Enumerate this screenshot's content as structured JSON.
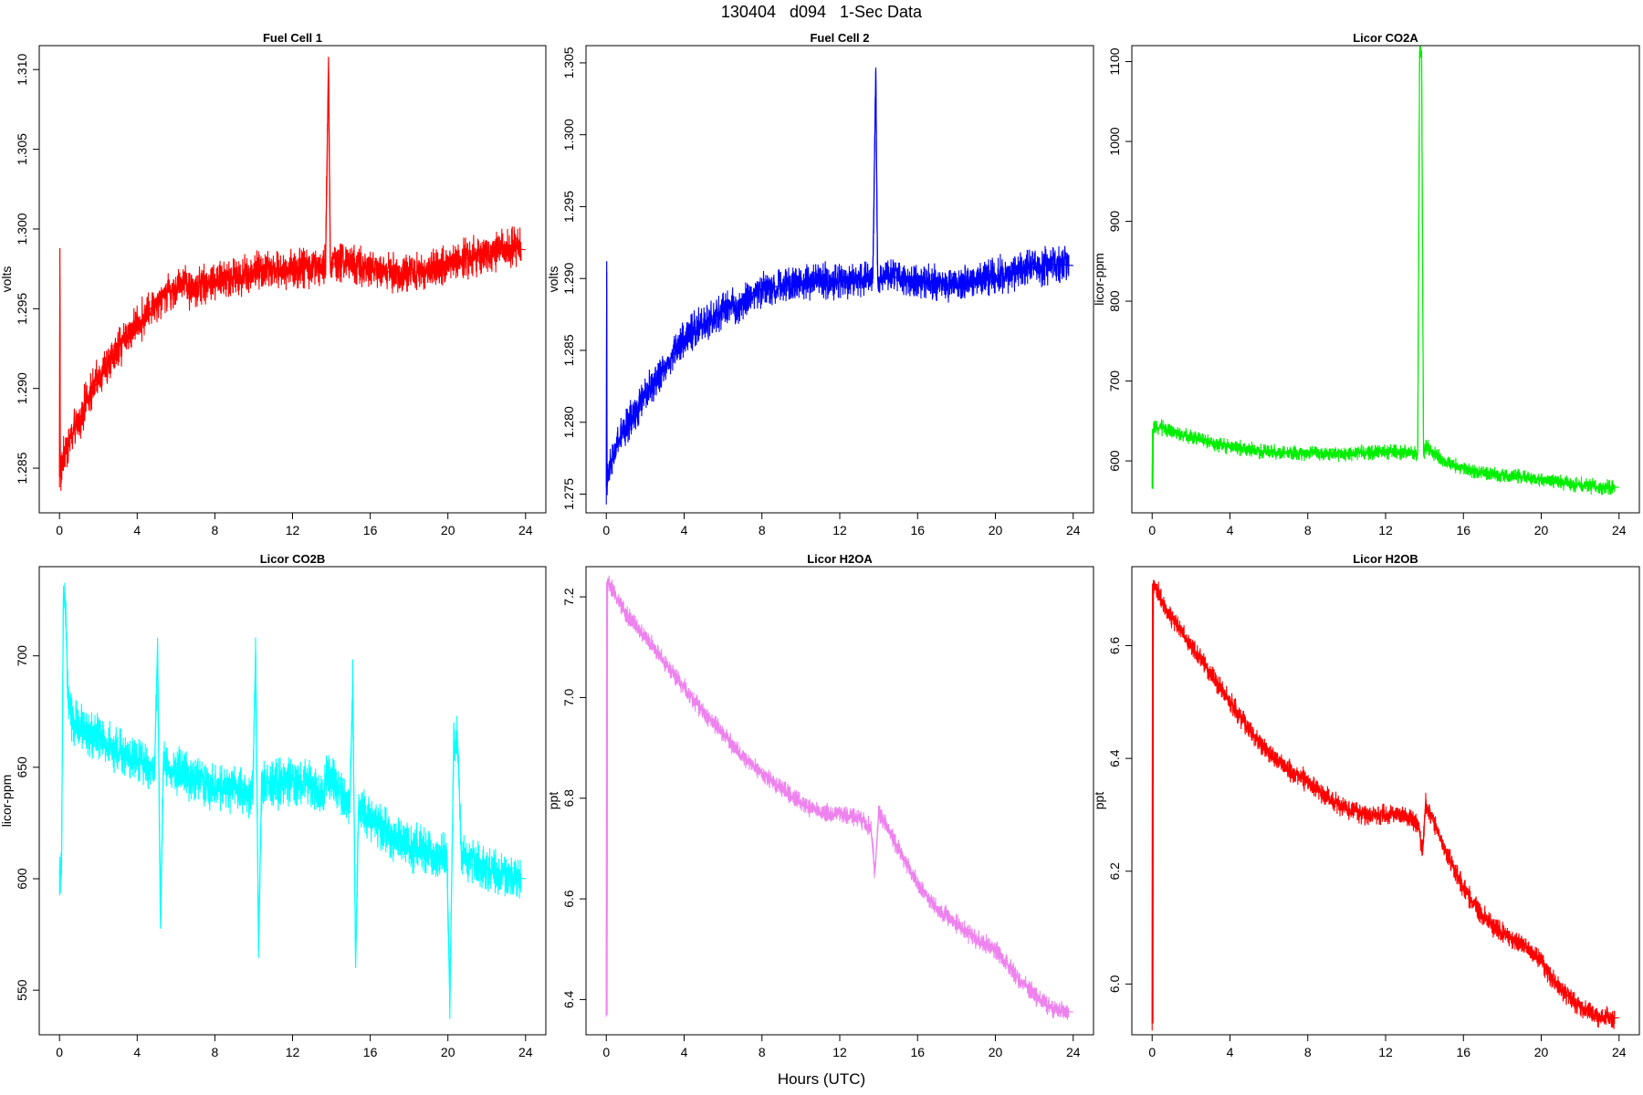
{
  "page": {
    "title": "130404   d094   1-Sec Data",
    "xlabel": "Hours (UTC)"
  },
  "chart_data": [
    {
      "type": "line",
      "title": "Fuel Cell 1",
      "ylabel": "volts",
      "color": "#ff0000",
      "xlim": [
        0,
        24
      ],
      "ylim": [
        1.2822,
        1.3115
      ],
      "xticks": [
        "0",
        "4",
        "8",
        "12",
        "16",
        "20",
        "24"
      ],
      "yticks": [
        "1.285",
        "1.290",
        "1.295",
        "1.300",
        "1.305",
        "1.310"
      ],
      "noise": 0.0012,
      "x": [
        0,
        0.02,
        0.04,
        0.06,
        0.2,
        0.5,
        1,
        1.5,
        2,
        2.5,
        3,
        3.5,
        4,
        4.5,
        5,
        5.5,
        6,
        6.5,
        6.6,
        7,
        7.5,
        8,
        9,
        10,
        11,
        11.5,
        12,
        13,
        13.7,
        13.85,
        13.95,
        14.1,
        14.5,
        15,
        16,
        17,
        18,
        19,
        20,
        21,
        22,
        23,
        24
      ],
      "y": [
        1.2845,
        1.2988,
        1.2845,
        1.2845,
        1.2855,
        1.2868,
        1.288,
        1.2895,
        1.2905,
        1.2915,
        1.2925,
        1.2933,
        1.294,
        1.2947,
        1.2955,
        1.296,
        1.2963,
        1.2968,
        1.2962,
        1.2962,
        1.2967,
        1.2967,
        1.297,
        1.2972,
        1.2976,
        1.2974,
        1.2975,
        1.2977,
        1.2976,
        1.3108,
        1.2972,
        1.2978,
        1.298,
        1.2978,
        1.2975,
        1.2973,
        1.2972,
        1.2975,
        1.2978,
        1.2982,
        1.2985,
        1.2988,
        1.2987
      ]
    },
    {
      "type": "line",
      "title": "Fuel Cell 2",
      "ylabel": "volts",
      "color": "#0000ff",
      "xlim": [
        0,
        24
      ],
      "ylim": [
        1.2737,
        1.3062
      ],
      "xticks": [
        "0",
        "4",
        "8",
        "12",
        "16",
        "20",
        "24"
      ],
      "yticks": [
        "1.275",
        "1.280",
        "1.285",
        "1.290",
        "1.295",
        "1.300",
        "1.305"
      ],
      "noise": 0.0012,
      "x": [
        0,
        0.02,
        0.04,
        0.06,
        0.2,
        0.5,
        1,
        1.5,
        2,
        2.5,
        3,
        3.5,
        4,
        4.5,
        5,
        5.5,
        6,
        6.5,
        6.6,
        7,
        7.5,
        8,
        9,
        10,
        11,
        11.5,
        12,
        13,
        13.7,
        13.85,
        13.95,
        14.1,
        14.5,
        15,
        16,
        17,
        18,
        19,
        20,
        21,
        22,
        23,
        24
      ],
      "y": [
        1.2755,
        1.2912,
        1.2755,
        1.2758,
        1.2768,
        1.2783,
        1.2797,
        1.2808,
        1.2818,
        1.2828,
        1.2838,
        1.2848,
        1.2858,
        1.2865,
        1.2868,
        1.2872,
        1.2878,
        1.2883,
        1.2878,
        1.2882,
        1.289,
        1.2893,
        1.2895,
        1.2898,
        1.29,
        1.2897,
        1.2898,
        1.29,
        1.29,
        1.3045,
        1.2898,
        1.2902,
        1.2903,
        1.29,
        1.2898,
        1.2897,
        1.2896,
        1.29,
        1.2902,
        1.2905,
        1.2908,
        1.291,
        1.2909
      ]
    },
    {
      "type": "line",
      "title": "Licor CO2A",
      "ylabel": "licor-ppm",
      "color": "#00ee00",
      "xlim": [
        0,
        24
      ],
      "ylim": [
        535,
        1120
      ],
      "xticks": [
        "0",
        "4",
        "8",
        "12",
        "16",
        "20",
        "24"
      ],
      "yticks": [
        "600",
        "700",
        "800",
        "900",
        "1000",
        "1100"
      ],
      "noise": 9,
      "x": [
        0,
        0.02,
        0.04,
        0.06,
        0.5,
        1,
        1.5,
        2,
        2.5,
        3,
        4,
        5,
        6,
        7,
        8,
        9,
        10,
        11,
        12,
        13,
        13.65,
        13.75,
        13.85,
        13.95,
        14.05,
        14.5,
        15,
        16,
        17,
        18,
        19,
        20,
        21,
        22,
        23,
        24
      ],
      "y": [
        565,
        640,
        565,
        640,
        642,
        638,
        632,
        630,
        628,
        622,
        618,
        614,
        612,
        610,
        610,
        609,
        609,
        610,
        611,
        611,
        609,
        1112,
        1112,
        609,
        618,
        610,
        600,
        590,
        585,
        582,
        580,
        577,
        574,
        570,
        567,
        567
      ]
    },
    {
      "type": "line",
      "title": "Licor CO2B",
      "ylabel": "licor-ppm",
      "color": "#00ffff",
      "xlim": [
        0,
        24
      ],
      "ylim": [
        530,
        740
      ],
      "xticks": [
        "0",
        "4",
        "8",
        "12",
        "16",
        "20",
        "24"
      ],
      "yticks": [
        "550",
        "600",
        "650",
        "700"
      ],
      "noise": 10,
      "x": [
        0,
        0.1,
        0.2,
        0.3,
        0.45,
        0.6,
        1,
        2,
        3,
        4,
        4.9,
        5.05,
        5.2,
        5.35,
        5.6,
        6,
        7,
        8,
        9,
        9.95,
        10.1,
        10.25,
        10.4,
        10.7,
        11,
        12,
        13,
        13.6,
        13.7,
        14,
        14.5,
        14.95,
        15.1,
        15.25,
        15.4,
        15.7,
        16,
        17,
        18,
        19,
        19.95,
        20.1,
        20.3,
        20.5,
        20.7,
        21,
        22,
        23,
        24
      ],
      "y": [
        602,
        602,
        725,
        725,
        680,
        672,
        668,
        664,
        657,
        652,
        650,
        705,
        578,
        652,
        650,
        648,
        645,
        641,
        640,
        638,
        702,
        568,
        640,
        644,
        642,
        644,
        643,
        635,
        647,
        645,
        638,
        632,
        688,
        560,
        632,
        628,
        626,
        620,
        615,
        611,
        610,
        543,
        662,
        662,
        610,
        607,
        604,
        601,
        600
      ]
    },
    {
      "type": "line",
      "title": "Licor H2OA",
      "ylabel": "ppt",
      "color": "#ee82ee",
      "xlim": [
        0,
        24
      ],
      "ylim": [
        6.33,
        7.26
      ],
      "xticks": [
        "0",
        "4",
        "8",
        "12",
        "16",
        "20",
        "24"
      ],
      "yticks": [
        "6.4",
        "6.6",
        "6.8",
        "7.0",
        "7.2"
      ],
      "noise": 0.018,
      "x": [
        0,
        0.02,
        0.04,
        0.06,
        0.5,
        1,
        2,
        3,
        4,
        5,
        6,
        7,
        8,
        9,
        10,
        11,
        12,
        13,
        13.6,
        13.8,
        14,
        14.2,
        15,
        16,
        17,
        18,
        19,
        20,
        21,
        22,
        23,
        24
      ],
      "y": [
        6.37,
        7.23,
        6.37,
        7.23,
        7.2,
        7.17,
        7.12,
        7.07,
        7.02,
        6.97,
        6.93,
        6.88,
        6.85,
        6.82,
        6.79,
        6.77,
        6.77,
        6.76,
        6.74,
        6.65,
        6.77,
        6.76,
        6.7,
        6.63,
        6.58,
        6.55,
        6.52,
        6.5,
        6.45,
        6.41,
        6.38,
        6.375
      ]
    },
    {
      "type": "line",
      "title": "Licor H2OB",
      "ylabel": "ppt",
      "color": "#ff0000",
      "xlim": [
        0,
        24
      ],
      "ylim": [
        5.91,
        6.74
      ],
      "xticks": [
        "0",
        "4",
        "8",
        "12",
        "16",
        "20",
        "24"
      ],
      "yticks": [
        "6.0",
        "6.2",
        "6.4",
        "6.6"
      ],
      "noise": 0.018,
      "x": [
        0,
        0.02,
        0.04,
        0.06,
        0.5,
        1,
        2,
        3,
        4,
        5,
        6,
        7,
        8,
        9,
        10,
        11,
        12,
        13,
        13.7,
        13.9,
        14.05,
        14.2,
        15,
        16,
        17,
        18,
        19,
        20,
        21,
        22,
        23,
        24
      ],
      "y": [
        5.93,
        6.71,
        5.93,
        6.71,
        6.68,
        6.65,
        6.6,
        6.55,
        6.5,
        6.45,
        6.41,
        6.38,
        6.36,
        6.33,
        6.31,
        6.3,
        6.3,
        6.3,
        6.28,
        6.23,
        6.32,
        6.31,
        6.24,
        6.17,
        6.12,
        6.09,
        6.07,
        6.04,
        5.99,
        5.96,
        5.94,
        5.94
      ]
    }
  ]
}
